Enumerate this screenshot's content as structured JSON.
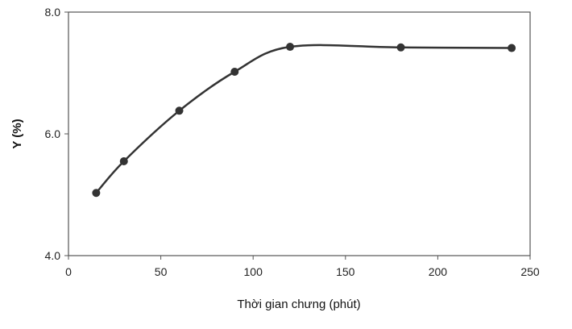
{
  "chart_data": {
    "type": "line",
    "title": "",
    "xlabel": "Thời gian chưng (phút)",
    "ylabel": "Y  (%)",
    "xlim": [
      0,
      250
    ],
    "ylim": [
      4.0,
      8.0
    ],
    "x_ticks": [
      0,
      50,
      100,
      150,
      200,
      250
    ],
    "x_tick_labels": [
      "0",
      "50",
      "100",
      "150",
      "200",
      "250"
    ],
    "y_ticks": [
      4.0,
      6.0,
      8.0
    ],
    "y_tick_labels": [
      "4.0",
      "6.0",
      "8.0"
    ],
    "grid": false,
    "legend": "none",
    "smooth": true,
    "line_color": "#333333",
    "marker_color": "#333333",
    "series": [
      {
        "x": [
          15,
          30,
          60,
          90,
          120,
          180,
          240
        ],
        "y": [
          5.03,
          5.55,
          6.38,
          7.02,
          7.43,
          7.42,
          7.41
        ]
      }
    ]
  }
}
